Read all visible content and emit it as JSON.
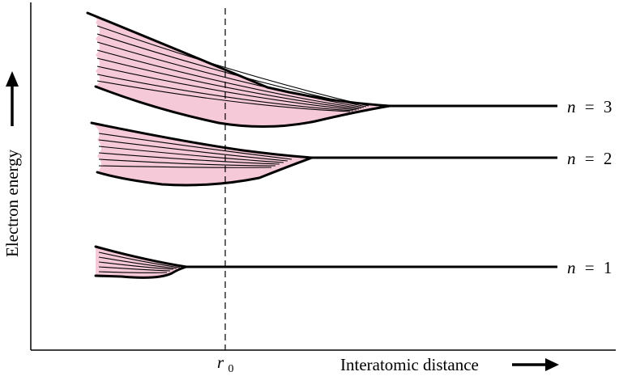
{
  "axes": {
    "y_label": "Electron energy",
    "x_label": "Interatomic distance"
  },
  "marker": {
    "symbol": "r",
    "subscript": "0"
  },
  "levels": [
    {
      "variable": "n",
      "equals": "=",
      "value": "3"
    },
    {
      "variable": "n",
      "equals": "=",
      "value": "2"
    },
    {
      "variable": "n",
      "equals": "=",
      "value": "1"
    }
  ],
  "colors": {
    "band_fill": "#f6c9d8",
    "line": "#000000"
  }
}
